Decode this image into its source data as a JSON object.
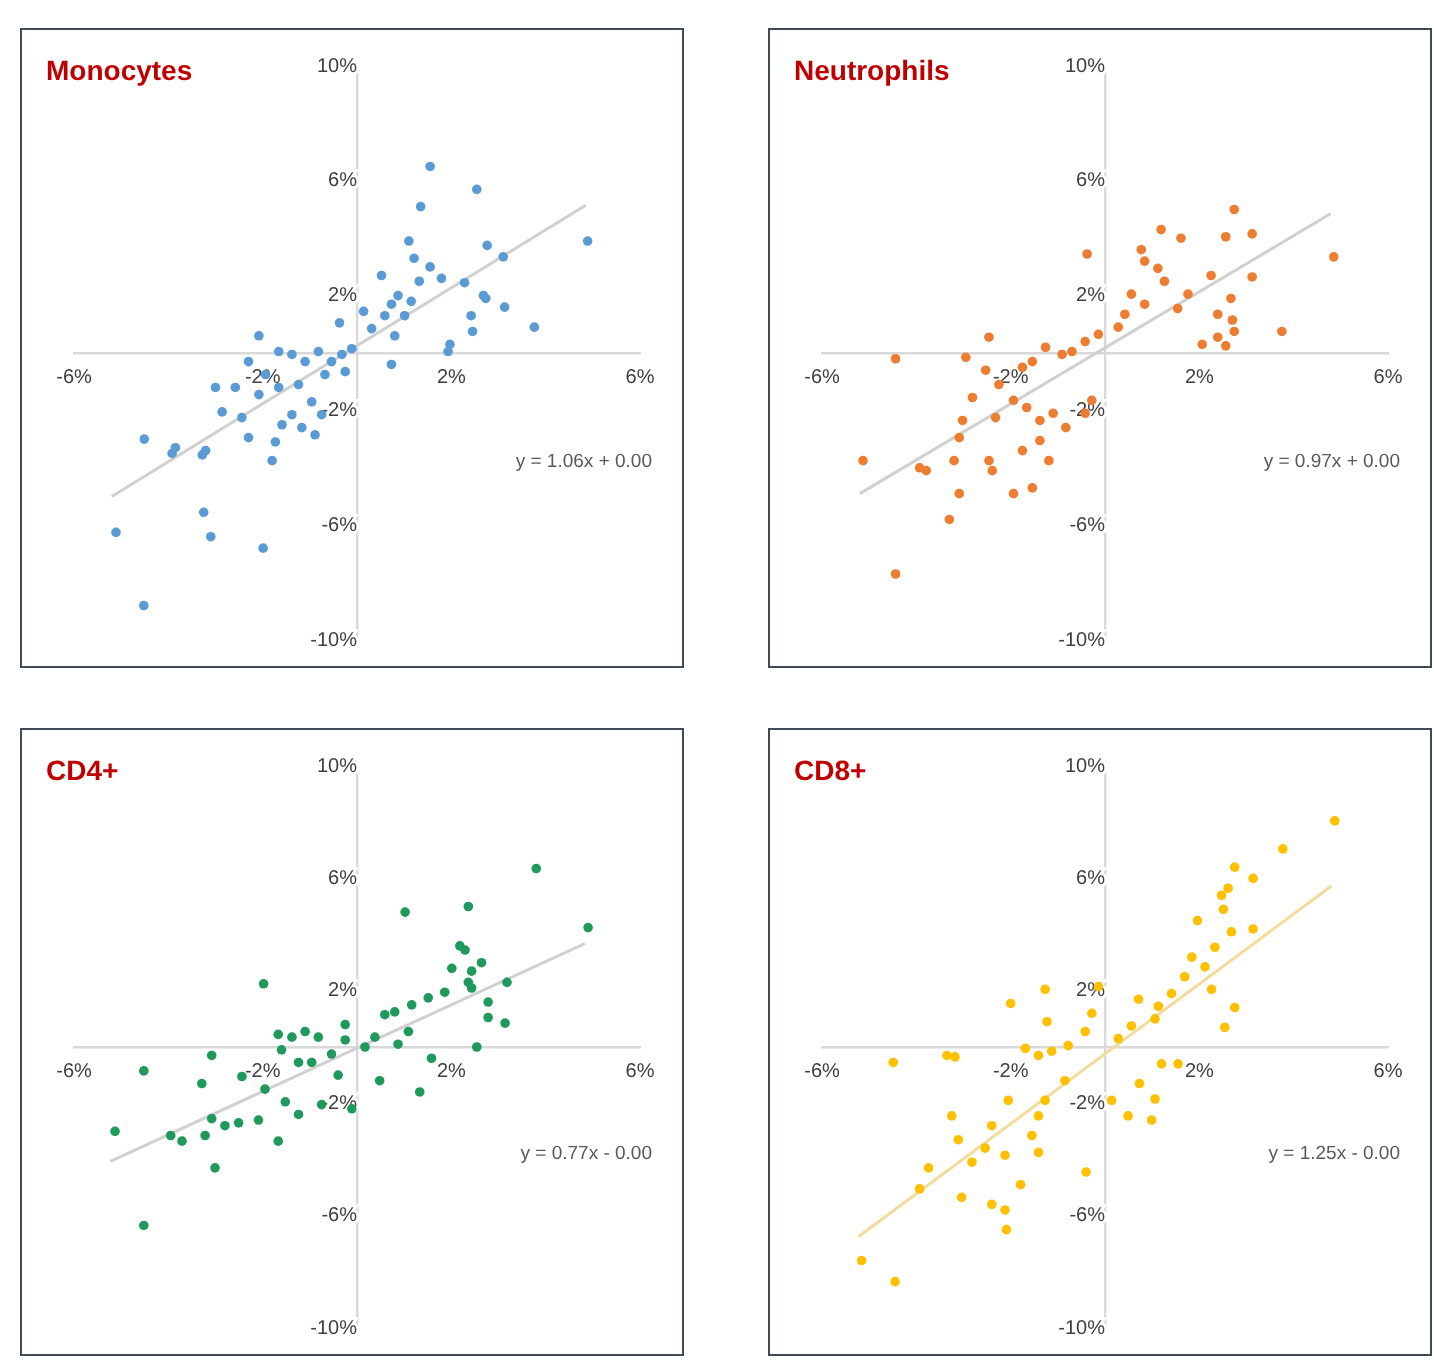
{
  "chart_data": [
    {
      "type": "scatter",
      "title": "Monocytes",
      "marker": "circle",
      "xlim": [
        -6,
        6
      ],
      "ylim": [
        -10,
        10
      ],
      "xticks": [
        {
          "value": -6,
          "label": "-6%"
        },
        {
          "value": -2,
          "label": "-2%"
        },
        {
          "value": 2,
          "label": "2%"
        },
        {
          "value": 6,
          "label": "6%"
        }
      ],
      "yticks": [
        {
          "value": -10,
          "label": "-10%"
        },
        {
          "value": -6,
          "label": "-6%"
        },
        {
          "value": -2,
          "label": "-2%"
        },
        {
          "value": 2,
          "label": "2%"
        },
        {
          "value": 6,
          "label": "6%"
        },
        {
          "value": 10,
          "label": "10%"
        }
      ],
      "annotations": [
        "y = 1.06x + 0.00"
      ],
      "series": [
        {
          "type": "line",
          "color": "#d0d0d0",
          "marker": "none",
          "x": [
            -5.2,
            4.85
          ],
          "values": [
            -5.0,
            5.15
          ]
        },
        {
          "color": "#5b9bd5",
          "x": [
            1.55,
            2.54,
            1.35,
            4.89,
            2.76,
            3.1,
            1.1,
            1.21,
            1.55,
            0.52,
            1.32,
            1.79,
            2.28,
            2.68,
            2.73,
            3.13,
            3.76,
            2.42,
            2.45,
            1.97,
            1.93,
            0.87,
            0.73,
            1.15,
            1.01,
            0.59,
            0.31,
            0.14,
            -0.37,
            0.8,
            0.73,
            -0.11,
            -0.32,
            -0.54,
            -0.82,
            -1.1,
            -1.38,
            -1.66,
            -2.08,
            -2.3,
            -1.94,
            -1.66,
            -1.24,
            -0.96,
            -0.75,
            -0.89,
            -1.17,
            -1.38,
            -1.59,
            -1.73,
            -1.8,
            -2.3,
            -2.44,
            -2.86,
            -3.0,
            -2.58,
            -2.08,
            -3.21,
            -3.28,
            -3.85,
            -3.92,
            -4.51,
            -5.11,
            -3.25,
            -3.1,
            -1.99,
            -4.52,
            -0.68,
            -0.25
          ],
          "values": [
            6.5,
            5.7,
            5.1,
            3.9,
            3.75,
            3.35,
            3.9,
            3.3,
            3.0,
            2.7,
            2.5,
            2.6,
            2.45,
            2.0,
            1.9,
            1.6,
            0.9,
            1.3,
            0.75,
            0.3,
            0.05,
            2.0,
            1.7,
            1.8,
            1.3,
            1.3,
            0.85,
            1.45,
            1.05,
            0.6,
            -0.4,
            0.15,
            -0.05,
            -0.3,
            0.05,
            -0.3,
            -0.05,
            0.05,
            0.6,
            -0.3,
            -0.75,
            -1.2,
            -1.1,
            -1.7,
            -2.15,
            -2.85,
            -2.6,
            -2.15,
            -2.5,
            -3.1,
            -3.75,
            -2.95,
            -2.25,
            -2.05,
            -1.2,
            -1.2,
            -1.45,
            -3.4,
            -3.55,
            -3.3,
            -3.5,
            -3.0,
            -6.25,
            -5.55,
            -6.4,
            -6.8,
            -8.8,
            -0.75,
            -0.65
          ]
        }
      ]
    },
    {
      "type": "scatter",
      "title": "Neutrophils",
      "marker": "circle",
      "xlim": [
        -6,
        6
      ],
      "ylim": [
        -10,
        10
      ],
      "xticks": [
        {
          "value": -6,
          "label": "-6%"
        },
        {
          "value": -2,
          "label": "-2%"
        },
        {
          "value": 2,
          "label": "2%"
        },
        {
          "value": 6,
          "label": "6%"
        }
      ],
      "yticks": [
        {
          "value": -10,
          "label": "-10%"
        },
        {
          "value": -6,
          "label": "-6%"
        },
        {
          "value": -2,
          "label": "-2%"
        },
        {
          "value": 2,
          "label": "2%"
        },
        {
          "value": 6,
          "label": "6%"
        },
        {
          "value": 10,
          "label": "10%"
        }
      ],
      "annotations": [
        "y = 0.97x + 0.00"
      ],
      "series": [
        {
          "type": "line",
          "color": "#d0d0d0",
          "marker": "none",
          "x": [
            -5.2,
            4.78
          ],
          "values": [
            -4.9,
            4.85
          ]
        },
        {
          "color": "#ed7d31",
          "x": [
            2.74,
            1.19,
            1.61,
            2.56,
            3.12,
            4.85,
            -0.38,
            0.77,
            0.84,
            1.12,
            1.26,
            2.25,
            3.12,
            1.76,
            2.67,
            2.39,
            2.7,
            2.74,
            2.39,
            2.06,
            2.56,
            3.75,
            1.54,
            0.56,
            0.84,
            0.42,
            0.28,
            -0.14,
            -0.42,
            -0.7,
            -0.91,
            -1.26,
            -1.54,
            -1.75,
            -2.46,
            -2.95,
            -2.53,
            -2.25,
            -2.81,
            -2.32,
            -1.94,
            -1.66,
            -1.38,
            -1.1,
            -0.83,
            -0.28,
            -0.42,
            -1.38,
            -1.19,
            -1.75,
            -3.02,
            -3.09,
            -3.2,
            -2.46,
            -2.39,
            -3.93,
            -3.79,
            -3.09,
            -3.3,
            -1.94,
            -1.54,
            -5.13,
            -4.44,
            -4.44
          ],
          "values": [
            5.0,
            4.3,
            4.0,
            4.05,
            4.15,
            3.35,
            3.45,
            3.6,
            3.2,
            2.95,
            2.5,
            2.7,
            2.65,
            2.05,
            1.9,
            1.35,
            1.15,
            0.75,
            0.55,
            0.3,
            0.25,
            0.75,
            1.55,
            2.05,
            1.7,
            1.35,
            0.9,
            0.65,
            0.4,
            0.05,
            -0.05,
            0.2,
            -0.3,
            -0.5,
            0.55,
            -0.15,
            -0.6,
            -1.1,
            -1.55,
            -2.25,
            -1.65,
            -1.9,
            -2.35,
            -2.1,
            -2.6,
            -1.65,
            -2.1,
            -3.05,
            -3.75,
            -3.4,
            -2.35,
            -2.95,
            -3.75,
            -3.75,
            -4.1,
            -4.0,
            -4.1,
            -4.9,
            -5.8,
            -4.9,
            -4.7,
            -3.75,
            -0.2,
            -7.7
          ]
        }
      ]
    },
    {
      "type": "scatter",
      "title": "CD4+",
      "marker": "circle",
      "xlim": [
        -6,
        6
      ],
      "ylim": [
        -10,
        10
      ],
      "xticks": [
        {
          "value": -6,
          "label": "-6%"
        },
        {
          "value": -2,
          "label": "-2%"
        },
        {
          "value": 2,
          "label": "2%"
        },
        {
          "value": 6,
          "label": "6%"
        }
      ],
      "yticks": [
        {
          "value": -10,
          "label": "-10%"
        },
        {
          "value": -6,
          "label": "-6%"
        },
        {
          "value": -2,
          "label": "-2%"
        },
        {
          "value": 2,
          "label": "2%"
        },
        {
          "value": 6,
          "label": "6%"
        },
        {
          "value": 10,
          "label": "10%"
        }
      ],
      "annotations": [
        "y = 0.77x - 0.00"
      ],
      "series": [
        {
          "type": "line",
          "color": "#d0d0d0",
          "marker": "none",
          "x": [
            -5.23,
            4.83
          ],
          "values": [
            -4.07,
            3.68
          ]
        },
        {
          "color": "#1f9a5c",
          "x": [
            3.8,
            4.9,
            2.36,
            1.02,
            2.18,
            2.29,
            2.64,
            2.43,
            2.01,
            3.18,
            2.36,
            2.43,
            1.86,
            1.51,
            1.16,
            0.8,
            0.59,
            2.78,
            2.78,
            3.14,
            2.54,
            1.58,
            1.33,
            1.09,
            0.87,
            0.38,
            0.17,
            -0.25,
            -0.25,
            -0.54,
            -0.82,
            -1.1,
            -1.38,
            -1.67,
            -1.6,
            -1.24,
            -0.96,
            -0.4,
            -0.11,
            0.48,
            -0.75,
            -1.24,
            -1.52,
            -1.95,
            -2.44,
            -1.98,
            -3.08,
            -3.29,
            -2.09,
            -2.51,
            -2.8,
            -3.08,
            -3.22,
            -3.71,
            -3.95,
            -1.67,
            -3.01,
            -5.13,
            -4.52,
            -4.52
          ],
          "values": [
            6.35,
            4.25,
            5.0,
            4.8,
            3.6,
            3.45,
            3.0,
            2.7,
            2.8,
            2.3,
            2.3,
            2.1,
            1.95,
            1.75,
            1.5,
            1.25,
            1.15,
            1.6,
            1.05,
            0.85,
            0.0,
            -0.4,
            -1.6,
            0.55,
            0.1,
            0.35,
            0.0,
            0.8,
            0.25,
            -0.25,
            0.35,
            0.55,
            0.35,
            0.45,
            -0.1,
            -0.55,
            -0.55,
            -1.0,
            -2.2,
            -1.2,
            -2.05,
            -2.4,
            -1.95,
            -1.5,
            -1.05,
            2.25,
            -0.3,
            -1.3,
            -2.6,
            -2.7,
            -2.8,
            -2.55,
            -3.15,
            -3.35,
            -3.15,
            -3.35,
            -4.3,
            -3.0,
            -0.85,
            -6.35
          ]
        }
      ]
    },
    {
      "type": "scatter",
      "title": "CD8+",
      "marker": "circle",
      "xlim": [
        -6,
        6
      ],
      "ylim": [
        -10,
        10
      ],
      "xticks": [
        {
          "value": -6,
          "label": "-6%"
        },
        {
          "value": -2,
          "label": "-2%"
        },
        {
          "value": 2,
          "label": "2%"
        },
        {
          "value": 6,
          "label": "6%"
        }
      ],
      "yticks": [
        {
          "value": -10,
          "label": "-10%"
        },
        {
          "value": -6,
          "label": "-6%"
        },
        {
          "value": -2,
          "label": "-2%"
        },
        {
          "value": 2,
          "label": "2%"
        },
        {
          "value": 6,
          "label": "6%"
        },
        {
          "value": 10,
          "label": "10%"
        }
      ],
      "annotations": [
        "y = 1.25x - 0.00"
      ],
      "series": [
        {
          "type": "line",
          "color": "#f2dc9b",
          "marker": "none",
          "x": [
            -5.23,
            4.8
          ],
          "values": [
            -6.75,
            5.73
          ]
        },
        {
          "color": "#ffc000",
          "x": [
            4.87,
            3.77,
            2.75,
            3.14,
            2.61,
            2.47,
            2.51,
            1.96,
            2.68,
            3.14,
            2.33,
            1.84,
            2.12,
            1.69,
            2.26,
            2.75,
            2.54,
            1.41,
            1.13,
            0.71,
            1.06,
            0.56,
            0.28,
            -0.14,
            -0.28,
            -0.42,
            -0.78,
            -1.13,
            -1.41,
            -1.69,
            -1.27,
            -2.0,
            -1.23,
            1.55,
            1.2,
            0.73,
            1.06,
            0.49,
            0.99,
            0.14,
            -0.85,
            -1.27,
            -1.41,
            -1.55,
            -1.41,
            -0.4,
            -2.05,
            -2.4,
            -2.54,
            -2.12,
            -3.11,
            -2.82,
            -3.25,
            -3.18,
            -3.35,
            -1.79,
            -2.4,
            -2.12,
            -2.09,
            -3.04,
            -3.93,
            -3.74,
            -4.49,
            -5.16,
            -4.45
          ],
          "values": [
            8.05,
            7.05,
            6.4,
            6.0,
            5.65,
            5.4,
            4.9,
            4.5,
            4.1,
            4.2,
            3.55,
            3.2,
            2.85,
            2.5,
            2.05,
            1.4,
            0.7,
            1.9,
            1.45,
            1.7,
            1.0,
            0.75,
            0.3,
            2.15,
            1.2,
            0.55,
            0.05,
            -0.15,
            -0.3,
            -0.05,
            2.05,
            1.55,
            0.9,
            -0.6,
            -0.6,
            -1.3,
            -1.85,
            -2.45,
            -2.6,
            -1.9,
            -1.2,
            -1.9,
            -2.45,
            -3.15,
            -3.75,
            -4.45,
            -1.9,
            -2.8,
            -3.6,
            -3.85,
            -3.3,
            -4.1,
            -2.45,
            -0.35,
            -0.3,
            -4.9,
            -5.6,
            -5.8,
            -6.5,
            -5.35,
            -5.05,
            -4.3,
            -0.55,
            -7.6,
            -8.35
          ]
        }
      ]
    }
  ]
}
